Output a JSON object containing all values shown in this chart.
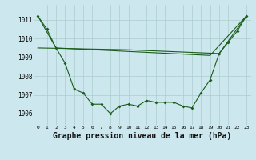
{
  "title": "Graphe pression niveau de la mer (hPa)",
  "title_fontsize": 7,
  "ylabel_ticks": [
    1006,
    1007,
    1008,
    1009,
    1010,
    1011
  ],
  "xlim": [
    -0.5,
    23.5
  ],
  "ylim": [
    1005.4,
    1011.8
  ],
  "background_color": "#cce8ee",
  "grid_color": "#aacccc",
  "line_color": "#1a5c1a",
  "line1_x": [
    0,
    1,
    2,
    3,
    4,
    5,
    6,
    7,
    8,
    9,
    10,
    11,
    12,
    13,
    14,
    15,
    16,
    17,
    18,
    19,
    20,
    21,
    22,
    23
  ],
  "line1_y": [
    1011.2,
    1010.5,
    1009.5,
    1008.7,
    1007.3,
    1007.1,
    1006.5,
    1006.5,
    1006.0,
    1006.4,
    1006.5,
    1006.4,
    1006.7,
    1006.6,
    1006.6,
    1006.6,
    1006.4,
    1006.3,
    1007.1,
    1007.8,
    1009.2,
    1009.8,
    1010.4,
    1011.2
  ],
  "line2_x": [
    0,
    2,
    19,
    23
  ],
  "line2_y": [
    1011.2,
    1009.5,
    1009.1,
    1011.2
  ],
  "line3_x": [
    0,
    10,
    20,
    23
  ],
  "line3_y": [
    1009.5,
    1009.4,
    1009.2,
    1011.2
  ]
}
